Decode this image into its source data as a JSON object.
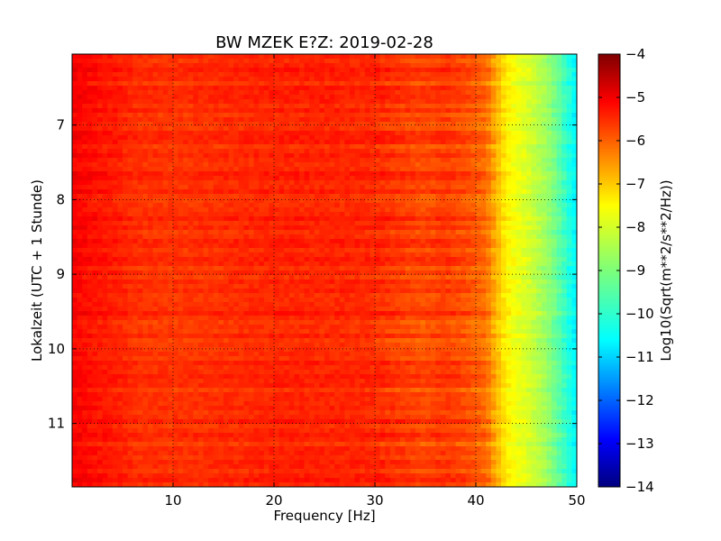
{
  "chart_data": {
    "type": "heatmap",
    "title": "BW MZEK E?Z: 2019-02-28",
    "xlabel": "Frequency [Hz]",
    "ylabel": "Lokalzeit (UTC + 1 Stunde)",
    "xlim": [
      0,
      50
    ],
    "ylim": [
      11.85,
      6.05
    ],
    "x_ticks": [
      10,
      20,
      30,
      40,
      50
    ],
    "y_ticks": [
      7,
      8,
      9,
      10,
      11
    ],
    "grid": true,
    "colormap": "jet",
    "colorbar": {
      "label": "Log10(Sqrt(m**2/s**2/Hz))",
      "range": [
        -14,
        -4
      ],
      "ticks": [
        -4,
        -5,
        -6,
        -7,
        -8,
        -9,
        -10,
        -11,
        -12,
        -13,
        -14
      ]
    },
    "spectral_profile": {
      "frequency_hz": [
        0,
        2,
        4,
        6,
        10,
        14,
        20,
        25,
        30,
        33,
        35,
        37,
        39,
        41,
        42,
        43,
        44,
        45,
        46,
        47,
        48,
        49,
        50
      ],
      "log10_level": [
        -5.2,
        -5.4,
        -5.5,
        -5.7,
        -5.75,
        -5.7,
        -5.6,
        -5.6,
        -5.65,
        -5.85,
        -5.95,
        -5.8,
        -6.0,
        -6.3,
        -7.0,
        -7.6,
        -7.9,
        -8.1,
        -8.4,
        -8.7,
        -9.2,
        -9.8,
        -10.4
      ]
    }
  }
}
